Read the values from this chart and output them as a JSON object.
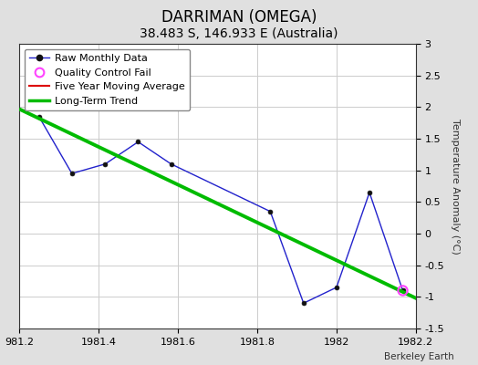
{
  "title": "DARRIMAN (OMEGA)",
  "subtitle": "38.483 S, 146.933 E (Australia)",
  "ylabel": "Temperature Anomaly (°C)",
  "watermark": "Berkeley Earth",
  "xlim": [
    1981.2,
    1982.2
  ],
  "ylim": [
    -1.5,
    3.0
  ],
  "xticks": [
    1981.2,
    1981.4,
    1981.6,
    1981.8,
    1982.0,
    1982.2
  ],
  "xtick_labels": [
    "981.2",
    "1981.4",
    "1981.6",
    "1981.8",
    "1982",
    "1982.2"
  ],
  "yticks": [
    -1.5,
    -1.0,
    -0.5,
    0.0,
    0.5,
    1.0,
    1.5,
    2.0,
    2.5,
    3.0
  ],
  "ytick_labels": [
    "-1.5",
    "-1",
    "-0.5",
    "0",
    "0.5",
    "1",
    "1.5",
    "2",
    "2.5",
    "3"
  ],
  "raw_x": [
    1981.25,
    1981.333,
    1981.417,
    1981.5,
    1981.583,
    1981.833,
    1981.917,
    1982.0,
    1982.083,
    1982.167
  ],
  "raw_y": [
    1.85,
    0.95,
    1.1,
    1.45,
    1.1,
    0.35,
    -1.1,
    -0.85,
    0.65,
    -0.9
  ],
  "trend_x": [
    1981.2,
    1982.22
  ],
  "trend_y": [
    1.97,
    -1.08
  ],
  "qc_fail_x": [
    1982.167
  ],
  "qc_fail_y": [
    -0.9
  ],
  "raw_color": "#2222cc",
  "trend_color": "#00bb00",
  "ma_color": "#dd0000",
  "qc_color": "#ff44ff",
  "bg_color": "#e0e0e0",
  "plot_bg_color": "#ffffff",
  "grid_color": "#cccccc",
  "title_fontsize": 12,
  "subtitle_fontsize": 10,
  "tick_fontsize": 8,
  "ylabel_fontsize": 8
}
